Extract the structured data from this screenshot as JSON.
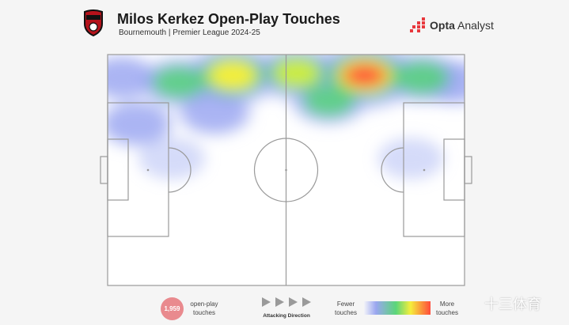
{
  "header": {
    "title": "Milos Kerkez Open-Play Touches",
    "subtitle": "Bournemouth | Premier League 2024-25",
    "brand": {
      "bold": "Opta",
      "rest": " Analyst",
      "icon": "opta-dots-icon",
      "color": "#e8383d"
    },
    "club_badge": "bournemouth-crest-icon"
  },
  "legend": {
    "touch_count": "1,959",
    "touch_count_label": [
      "open-play",
      "touches"
    ],
    "direction_label": "Attacking Direction",
    "fewer_label": [
      "Fewer",
      "touches"
    ],
    "more_label": [
      "More",
      "touches"
    ],
    "gradient_colors": [
      "#f2f3f8",
      "#9aa6f0",
      "#5bd67a",
      "#f5ee3c",
      "#ff4b3c"
    ]
  },
  "watermark": "十三体育",
  "chart_data": {
    "type": "heatmap",
    "title": "Milos Kerkez Open-Play Touches",
    "subtitle": "Bournemouth | Premier League 2024-25",
    "attacking_direction": "left-to-right",
    "total_touches": 1959,
    "hotspots": [
      {
        "x_pct": 72,
        "y_pct": 9,
        "intensity": 1.0
      },
      {
        "x_pct": 35,
        "y_pct": 9,
        "intensity": 0.75
      },
      {
        "x_pct": 53,
        "y_pct": 8,
        "intensity": 0.55
      },
      {
        "x_pct": 88,
        "y_pct": 10,
        "intensity": 0.45
      },
      {
        "x_pct": 20,
        "y_pct": 12,
        "intensity": 0.4
      },
      {
        "x_pct": 62,
        "y_pct": 20,
        "intensity": 0.35
      },
      {
        "x_pct": 8,
        "y_pct": 30,
        "intensity": 0.3
      },
      {
        "x_pct": 30,
        "y_pct": 25,
        "intensity": 0.3
      },
      {
        "x_pct": 4,
        "y_pct": 10,
        "intensity": 0.25
      },
      {
        "x_pct": 97,
        "y_pct": 12,
        "intensity": 0.25
      },
      {
        "x_pct": 18,
        "y_pct": 45,
        "intensity": 0.12
      },
      {
        "x_pct": 85,
        "y_pct": 45,
        "intensity": 0.1
      }
    ]
  }
}
